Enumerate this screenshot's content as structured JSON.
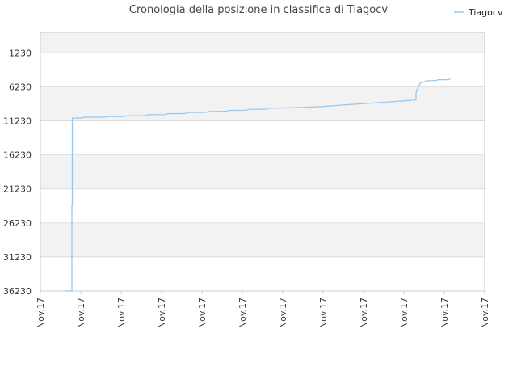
{
  "chart_data": {
    "type": "line",
    "title": "Cronologia della posizione in classifica di Tiagocv",
    "xlabel": "",
    "ylabel": "",
    "y_reversed": true,
    "ylim": [
      36230,
      -1770
    ],
    "y_ticks": [
      1230,
      6230,
      11230,
      16230,
      21230,
      26230,
      31230,
      36230
    ],
    "x_tick_labels": [
      "Nov.17",
      "Nov.17",
      "Nov.17",
      "Nov.17",
      "Nov.17",
      "Nov.17",
      "Nov.17",
      "Nov.17",
      "Nov.17",
      "Nov.17",
      "Nov.17",
      "Nov.17"
    ],
    "legend_position": "top-right",
    "grid": true,
    "colors": {
      "line": "#99c8ef",
      "band": "#f2f2f2",
      "grid": "#dddddd",
      "axis": "#cccccc"
    },
    "series": [
      {
        "name": "Tiagocv",
        "points": [
          [
            0.6,
            36230
          ],
          [
            0.78,
            36230
          ],
          [
            0.78,
            23700
          ],
          [
            0.79,
            23700
          ],
          [
            0.79,
            10830
          ],
          [
            1.0,
            10830
          ],
          [
            1.1,
            10700
          ],
          [
            1.6,
            10690
          ],
          [
            1.65,
            10600
          ],
          [
            2.1,
            10590
          ],
          [
            2.15,
            10480
          ],
          [
            2.6,
            10460
          ],
          [
            2.65,
            10330
          ],
          [
            3.1,
            10310
          ],
          [
            3.15,
            10180
          ],
          [
            3.6,
            10150
          ],
          [
            3.65,
            10020
          ],
          [
            4.1,
            9990
          ],
          [
            4.15,
            9860
          ],
          [
            4.6,
            9830
          ],
          [
            4.65,
            9700
          ],
          [
            5.1,
            9670
          ],
          [
            5.15,
            9540
          ],
          [
            5.6,
            9510
          ],
          [
            5.65,
            9380
          ],
          [
            6.0,
            9340
          ],
          [
            6.5,
            9260
          ],
          [
            7.0,
            9120
          ],
          [
            7.5,
            8900
          ],
          [
            8.0,
            8700
          ],
          [
            8.5,
            8500
          ],
          [
            9.0,
            8300
          ],
          [
            9.3,
            8150
          ],
          [
            9.3,
            7200
          ],
          [
            9.32,
            6700
          ],
          [
            9.35,
            6400
          ],
          [
            9.4,
            5700
          ],
          [
            9.5,
            5500
          ],
          [
            9.55,
            5350
          ],
          [
            9.8,
            5300
          ],
          [
            9.85,
            5200
          ],
          [
            10.1,
            5180
          ],
          [
            10.15,
            5100
          ]
        ]
      }
    ]
  }
}
